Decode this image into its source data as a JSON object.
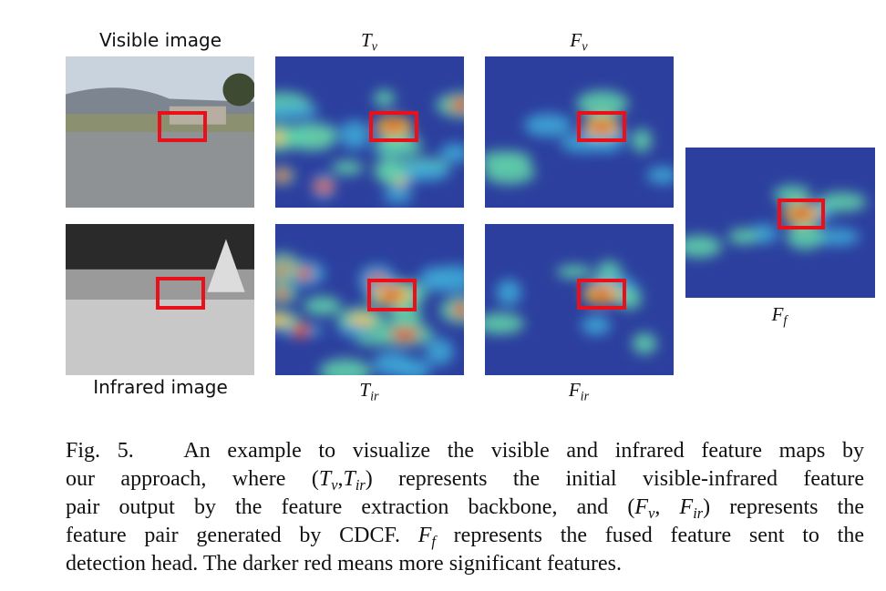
{
  "figure": {
    "labels": {
      "visible": "Visible image",
      "infrared": "Infrared image",
      "tv": {
        "var": "T",
        "sub": "v"
      },
      "fv": {
        "var": "F",
        "sub": "v"
      },
      "tir": {
        "var": "T",
        "sub": "ir"
      },
      "fir": {
        "var": "F",
        "sub": "ir"
      },
      "ff": {
        "var": "F",
        "sub": "f"
      }
    },
    "caption": [
      [
        {
          "text": "Fig. 5.   An example to visualize the visible and infrared feature maps by"
        }
      ],
      [
        {
          "text": "our approach, where ("
        },
        {
          "var": "T",
          "sub": "v"
        },
        {
          "text": ","
        },
        {
          "var": "T",
          "sub": "ir"
        },
        {
          "text": ") represents the initial visible-infrared feature"
        }
      ],
      [
        {
          "text": "pair output by the feature extraction backbone, and ("
        },
        {
          "var": "F",
          "sub": "v"
        },
        {
          "text": ", "
        },
        {
          "var": "F",
          "sub": "ir"
        },
        {
          "text": ") represents the"
        }
      ],
      [
        {
          "text": "feature pair generated by CDCF. "
        },
        {
          "var": "F",
          "sub": "f"
        },
        {
          "text": " represents the fused feature sent to the"
        }
      ],
      [
        {
          "text": "detection head. The darker red means more significant features."
        }
      ]
    ]
  }
}
